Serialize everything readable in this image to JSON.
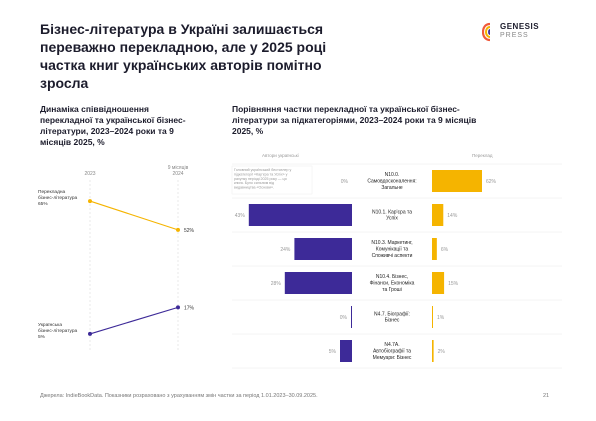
{
  "title": "Бізнес-література в Україні залишається переважно перекладною, але у 2025 році частка книг українських авторів помітно зросла",
  "logo": {
    "line1": "GENESIS",
    "line2": "PRESS"
  },
  "left_subtitle": "Динаміка співвідношення перекладної та української бізнес-літератури, 2023–2024 роки та 9 місяців 2025, %",
  "right_subtitle": "Порівняння частки перекладної та української бізнес-літератури за підкатегоріями, 2023–2024 роки та 9 місяців 2025, %",
  "colors": {
    "translated": "#f5b400",
    "ukrainian": "#3d2a98",
    "line_gray": "#dddddd"
  },
  "chart_data": [
    {
      "type": "line",
      "x": [
        "2023",
        "9 місяців 2024"
      ],
      "series": [
        {
          "name": "Перекладна бізнес-література",
          "values": [
            65,
            52
          ],
          "start_label": "65%",
          "end_label": "52%"
        },
        {
          "name": "Українська бізнес-література",
          "values": [
            5,
            17
          ],
          "start_label": "5%",
          "end_label": "17%"
        }
      ]
    },
    {
      "type": "bar",
      "left_header": "Автори українські",
      "right_header": "Переклад",
      "note": "Головний український бестселер у підкатегорії «Кар'єра та Успіх» у рахунку періоді 2025 року — ця книга. Було сильним від видавництва «Основи».",
      "categories": [
        "N10.0. Самовдосконалення: Загальне",
        "N10.1. Кар'єра та Успіх",
        "N10.3. Маркетинг, Комунікації та Споживчі аспекти",
        "N10.4. Бізнес, Фінанси, Економіка та Гроші",
        "N4.7. Біографії: Бізнес",
        "N4.7A. Автобіографії та Мемуари: Бізнес"
      ],
      "series": [
        {
          "name": "Автори українські",
          "values": [
            0,
            43,
            24,
            28,
            0,
            5
          ],
          "labels": [
            "0%",
            "43%",
            "24%",
            "28%",
            "0%",
            "5%"
          ]
        },
        {
          "name": "Переклад",
          "values": [
            62,
            14,
            6,
            15,
            1,
            2
          ],
          "labels": [
            "62%",
            "14%",
            "6%",
            "15%",
            "1%",
            "2%"
          ]
        }
      ]
    }
  ],
  "footer": "Джерела: IndieBookData. Показники розраховано з урахуванням змін частки за період 1.01.2023–30.09.2025.",
  "page_number": "21"
}
